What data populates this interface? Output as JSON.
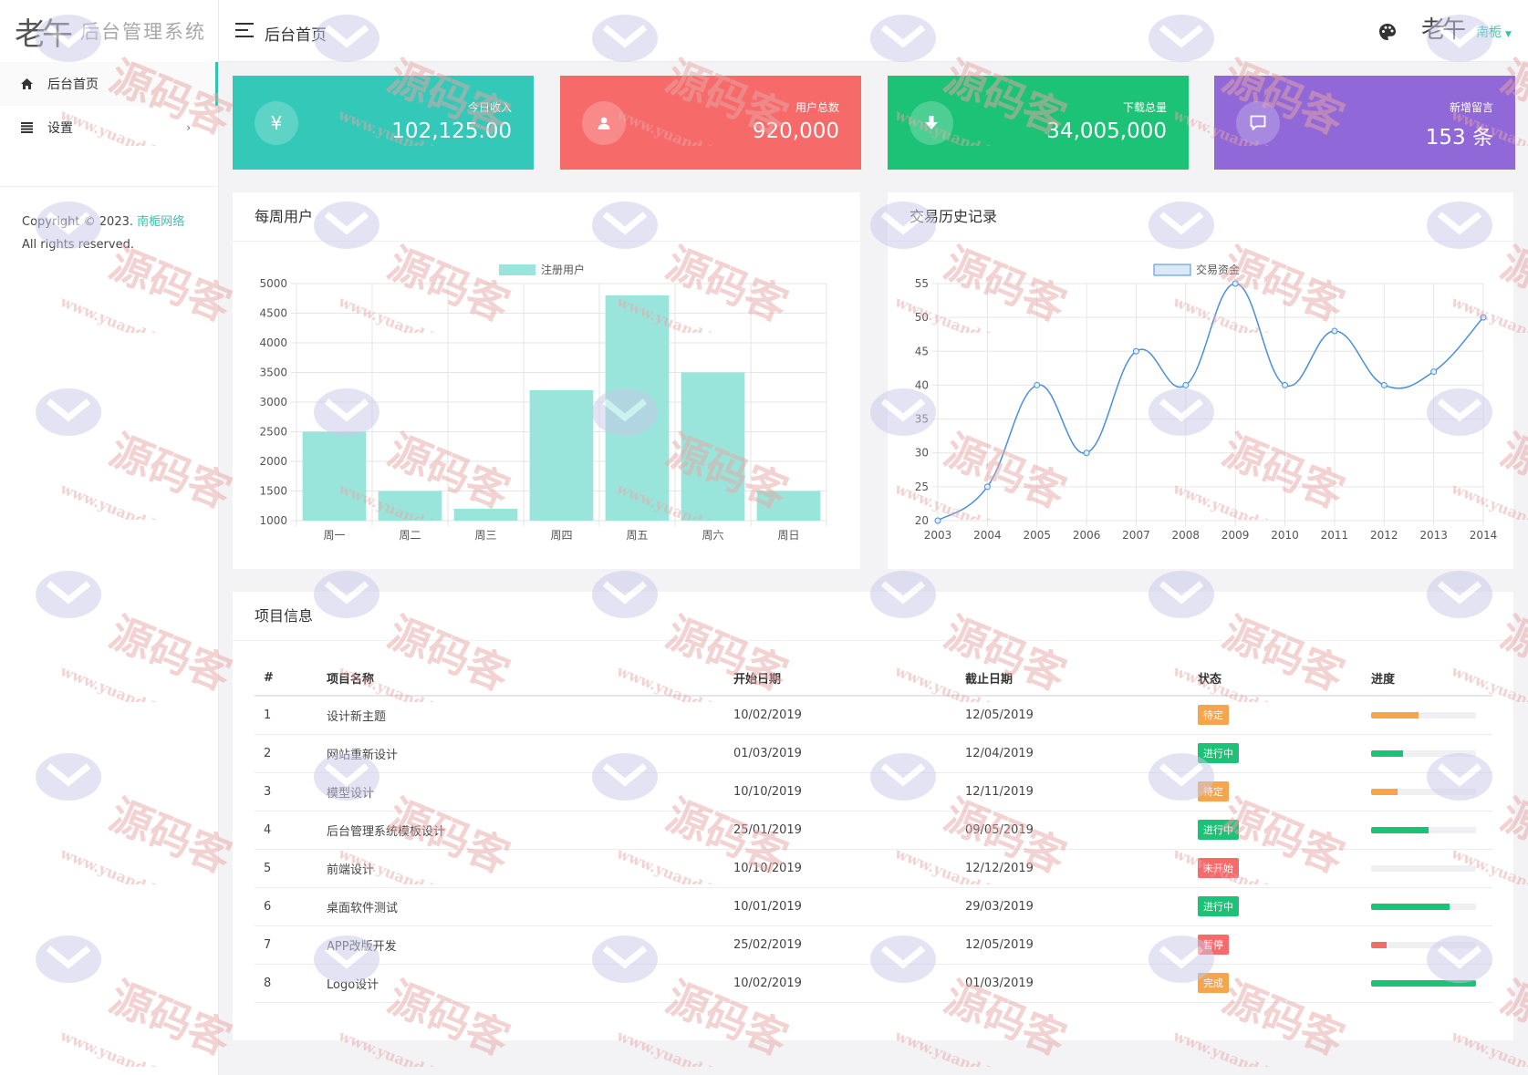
{
  "sidebar": {
    "logo_mark": "老午",
    "logo_text": "后台管理系统",
    "items": [
      {
        "label": "后台首页",
        "icon": "home-icon",
        "active": true
      },
      {
        "label": "设置",
        "icon": "list-icon",
        "arrow": "›"
      }
    ],
    "copyright_prefix": "Copyright © 2023. ",
    "copyright_brand": "南栀网络",
    "copyright_suffix": " All rights reserved."
  },
  "header": {
    "title": "后台首页",
    "avatar_mark": "老午",
    "username": "南栀",
    "caret": "▼"
  },
  "stats": [
    {
      "label": "今日收入",
      "value": "102,125.00",
      "icon": "yen-icon",
      "glyph": "¥",
      "color": "#33c8b7"
    },
    {
      "label": "用户总数",
      "value": "920,000",
      "icon": "user-icon",
      "color": "#f76a6a"
    },
    {
      "label": "下载总量",
      "value": "34,005,000",
      "icon": "download-icon",
      "color": "#1cc276"
    },
    {
      "label": "新增留言",
      "value": "153 条",
      "icon": "message-icon",
      "color": "#9068d8"
    }
  ],
  "weekly": {
    "title": "每周用户"
  },
  "history": {
    "title": "交易历史记录"
  },
  "chart_data": [
    {
      "type": "bar",
      "title": "每周用户",
      "categories": [
        "周一",
        "周二",
        "周三",
        "周四",
        "周五",
        "周六",
        "周日"
      ],
      "series": [
        {
          "name": "注册用户",
          "values": [
            2500,
            1500,
            1200,
            3200,
            4800,
            3500,
            1500
          ],
          "color": "#9ae5db"
        }
      ],
      "ylim": [
        1000,
        5000
      ],
      "yticks": [
        "5000",
        "4500",
        "4000",
        "3500",
        "3000",
        "2500",
        "2000",
        "1500",
        "1000"
      ],
      "grid": true,
      "legend": "top-center"
    },
    {
      "type": "line",
      "title": "交易历史记录",
      "categories": [
        "2003",
        "2004",
        "2005",
        "2006",
        "2007",
        "2008",
        "2009",
        "2010",
        "2011",
        "2012",
        "2013",
        "2014"
      ],
      "series": [
        {
          "name": "交易资金",
          "values": [
            20,
            25,
            40,
            30,
            45,
            40,
            55,
            40,
            48,
            40,
            42,
            50
          ],
          "color": "#4a90d9"
        }
      ],
      "ylim": [
        20,
        55
      ],
      "yticks": [
        "55",
        "50",
        "45",
        "40",
        "35",
        "30",
        "25",
        "20"
      ],
      "grid": true,
      "legend": "top-center"
    }
  ],
  "projects": {
    "title": "项目信息",
    "headers": [
      "#",
      "项目名称",
      "开始日期",
      "截止日期",
      "状态",
      "进度"
    ],
    "rows": [
      {
        "id": "1",
        "name": "设计新主题",
        "start": "10/02/2019",
        "end": "12/05/2019",
        "status": "待定",
        "status_color": "#f6a54c",
        "progress": 0.45,
        "progress_color": "#f6a54c"
      },
      {
        "id": "2",
        "name": "网站重新设计",
        "start": "01/03/2019",
        "end": "12/04/2019",
        "status": "进行中",
        "status_color": "#1cc276",
        "progress": 0.3,
        "progress_color": "#1cc276"
      },
      {
        "id": "3",
        "name": "模型设计",
        "start": "10/10/2019",
        "end": "12/11/2019",
        "status": "待定",
        "status_color": "#f6a54c",
        "progress": 0.25,
        "progress_color": "#f6a54c"
      },
      {
        "id": "4",
        "name": "后台管理系统模板设计",
        "start": "25/01/2019",
        "end": "09/05/2019",
        "status": "进行中",
        "status_color": "#1cc276",
        "progress": 0.55,
        "progress_color": "#1cc276"
      },
      {
        "id": "5",
        "name": "前端设计",
        "start": "10/10/2019",
        "end": "12/12/2019",
        "status": "未开始",
        "status_color": "#f76a6a",
        "progress": 0,
        "progress_color": "#f76a6a"
      },
      {
        "id": "6",
        "name": "桌面软件测试",
        "start": "10/01/2019",
        "end": "29/03/2019",
        "status": "进行中",
        "status_color": "#1cc276",
        "progress": 0.75,
        "progress_color": "#1cc276"
      },
      {
        "id": "7",
        "name": "APP改版开发",
        "start": "25/02/2019",
        "end": "12/05/2019",
        "status": "暂停",
        "status_color": "#f76a6a",
        "progress": 0.15,
        "progress_color": "#f76a6a"
      },
      {
        "id": "8",
        "name": "Logo设计",
        "start": "10/02/2019",
        "end": "01/03/2019",
        "status": "完成",
        "status_color": "#f6a54c",
        "progress": 1.0,
        "progress_color": "#1cc276"
      }
    ]
  },
  "watermark": {
    "text": "源码客",
    "url": "www.yuandd.net"
  }
}
